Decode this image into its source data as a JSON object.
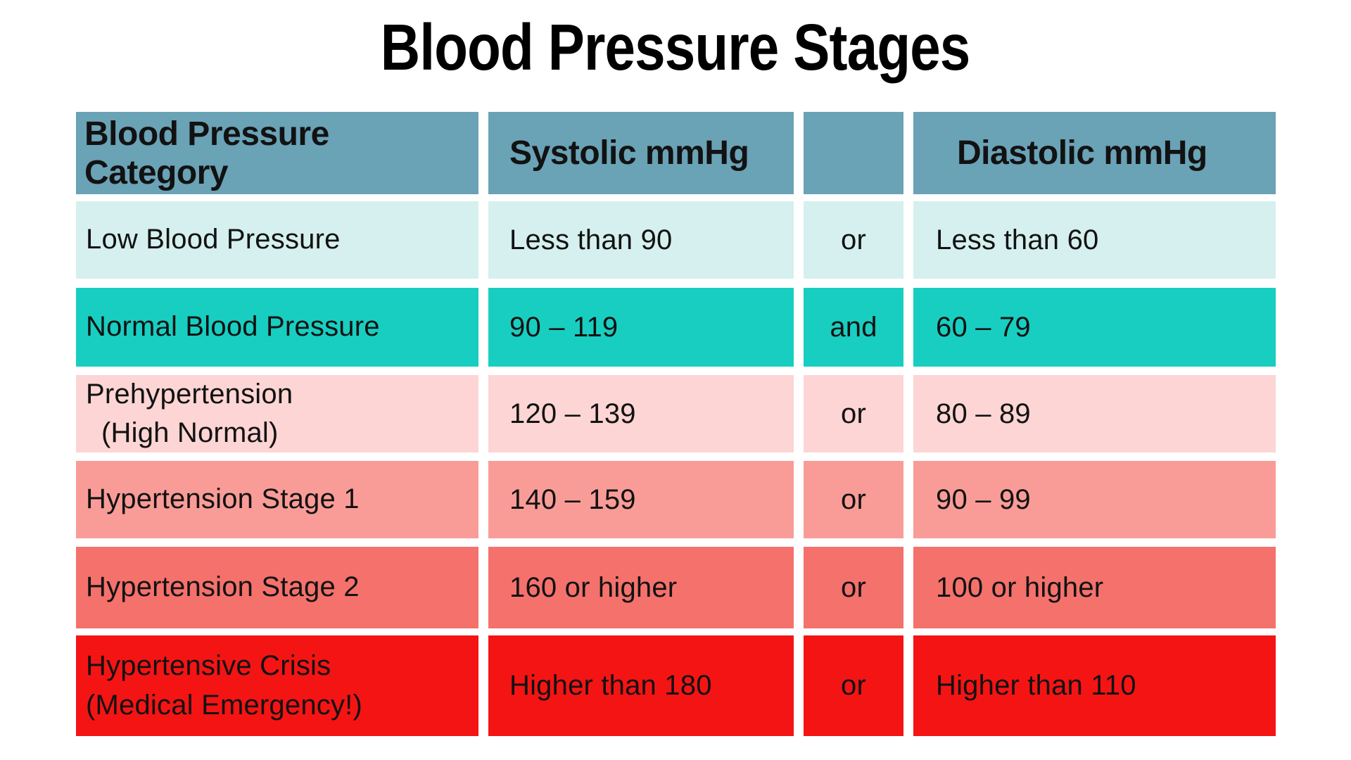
{
  "title": "Blood Pressure Stages",
  "colors": {
    "background": "#ffffff",
    "text": "#121212",
    "header_bg": "#6aa2b6",
    "row_low": "#d5f0ee",
    "row_normal": "#18cec1",
    "row_prehypertension": "#fcd5d4",
    "row_stage1": "#f99c97",
    "row_stage2": "#f4716c",
    "row_crisis": "#f41414"
  },
  "table": {
    "headers": {
      "category": "Blood Pressure Category",
      "systolic": "Systolic mmHg",
      "connector": "",
      "diastolic": "Diastolic mmHg"
    },
    "rows": [
      {
        "category": "Low Blood Pressure",
        "category_sub": "",
        "systolic": "Less than 90",
        "connector": "or",
        "diastolic": "Less than 60",
        "color": "#d5f0ee"
      },
      {
        "category": "Normal Blood Pressure",
        "category_sub": "",
        "systolic": "90 – 119",
        "connector": "and",
        "diastolic": "60 – 79",
        "color": "#18cec1"
      },
      {
        "category": "Prehypertension",
        "category_sub": "(High Normal)",
        "systolic": "120 – 139",
        "connector": "or",
        "diastolic": "80 – 89",
        "color": "#fcd5d4"
      },
      {
        "category": "Hypertension Stage 1",
        "category_sub": "",
        "systolic": "140 – 159",
        "connector": "or",
        "diastolic": "90 – 99",
        "color": "#f99c97"
      },
      {
        "category": "Hypertension Stage 2",
        "category_sub": "",
        "systolic": "160 or higher",
        "connector": "or",
        "diastolic": "100 or higher",
        "color": "#f4716c"
      },
      {
        "category": "Hypertensive Crisis",
        "category_sub": "(Medical Emergency!)",
        "systolic": "Higher than 180",
        "connector": "or",
        "diastolic": "Higher than 110",
        "color": "#f41414"
      }
    ]
  },
  "chart_data": {
    "type": "table",
    "title": "Blood Pressure Stages",
    "columns": [
      "Blood Pressure Category",
      "Systolic mmHg",
      "",
      "Diastolic mmHg"
    ],
    "rows": [
      [
        "Low Blood Pressure",
        "Less than 90",
        "or",
        "Less than 60"
      ],
      [
        "Normal Blood Pressure",
        "90 – 119",
        "and",
        "60 – 79"
      ],
      [
        "Prehypertension (High Normal)",
        "120 – 139",
        "or",
        "80 – 89"
      ],
      [
        "Hypertension Stage 1",
        "140 – 159",
        "or",
        "90 – 99"
      ],
      [
        "Hypertension Stage 2",
        "160 or higher",
        "or",
        "100 or higher"
      ],
      [
        "Hypertensive Crisis (Medical Emergency!)",
        "Higher than 180",
        "or",
        "Higher than 110"
      ]
    ],
    "row_colors": [
      "#d5f0ee",
      "#18cec1",
      "#fcd5d4",
      "#f99c97",
      "#f4716c",
      "#f41414"
    ],
    "header_color": "#6aa2b6",
    "layout": "header row + 6 data rows, 4 columns, white gaps between all cells"
  }
}
